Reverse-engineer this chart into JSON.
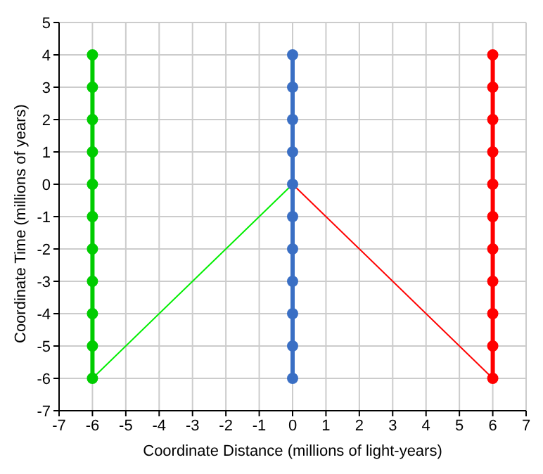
{
  "chart_data": {
    "type": "line",
    "xlabel": "Coordinate Distance (millions of light-years)",
    "ylabel": "Coordinate Time (millions of years)",
    "xlim": [
      -7,
      7
    ],
    "xticks": [
      -7,
      -6,
      -5,
      -4,
      -3,
      -2,
      -1,
      0,
      1,
      2,
      3,
      4,
      5,
      6,
      7
    ],
    "ylim": [
      -7,
      5
    ],
    "yticks": [
      -7,
      -6,
      -5,
      -4,
      -3,
      -2,
      -1,
      0,
      1,
      2,
      3,
      4,
      5
    ],
    "grid": true,
    "marker": "circle",
    "line_style": "solid",
    "series": [
      {
        "color": "#00cc00",
        "x": [
          -6,
          -6,
          -6,
          -6,
          -6,
          -6,
          -6,
          -6,
          -6,
          -6,
          -6
        ],
        "values": [
          -6,
          -5,
          -4,
          -3,
          -2,
          -1,
          0,
          1,
          2,
          3,
          4
        ]
      },
      {
        "color": "#3a6fc4",
        "x": [
          0,
          0,
          0,
          0,
          0,
          0,
          0,
          0,
          0,
          0,
          0
        ],
        "values": [
          -6,
          -5,
          -4,
          -3,
          -2,
          -1,
          0,
          1,
          2,
          3,
          4
        ]
      },
      {
        "color": "#ff0000",
        "x": [
          6,
          6,
          6,
          6,
          6,
          6,
          6,
          6,
          6,
          6,
          6
        ],
        "values": [
          -6,
          -5,
          -4,
          -3,
          -2,
          -1,
          0,
          1,
          2,
          3,
          4
        ]
      },
      {
        "color": "#00ee00",
        "marker": "none",
        "x": [
          -6,
          0
        ],
        "values": [
          -6,
          0
        ]
      },
      {
        "color": "#ff0000",
        "marker": "none",
        "x": [
          0,
          6
        ],
        "values": [
          0,
          -6
        ]
      }
    ]
  }
}
